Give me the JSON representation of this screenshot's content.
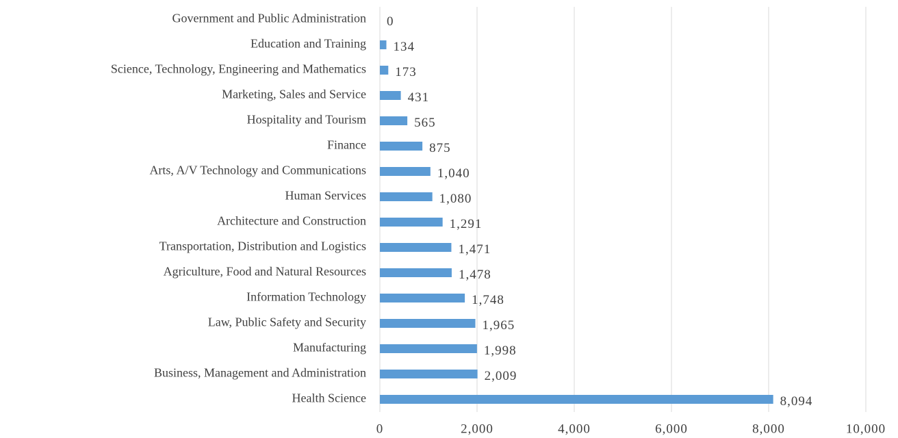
{
  "chart_data": {
    "type": "barh",
    "categories": [
      "Government and Public Administration",
      "Education and Training",
      "Science, Technology, Engineering and Mathematics",
      "Marketing, Sales and Service",
      "Hospitality and Tourism",
      "Finance",
      "Arts, A/V Technology and Communications",
      "Human Services",
      "Architecture and Construction",
      "Transportation, Distribution and Logistics",
      "Agriculture, Food and Natural Resources",
      "Information Technology",
      "Law, Public Safety and Security",
      "Manufacturing",
      "Business, Management and Administration",
      "Health Science"
    ],
    "values": [
      0,
      134,
      173,
      431,
      565,
      875,
      1040,
      1080,
      1291,
      1471,
      1478,
      1748,
      1965,
      1998,
      2009,
      8094
    ],
    "value_labels": [
      "0",
      "134",
      "173",
      "431",
      "565",
      "875",
      "1,040",
      "1,080",
      "1,291",
      "1,471",
      "1,478",
      "1,748",
      "1,965",
      "1,998",
      "2,009",
      "8,094"
    ],
    "color": "#5b9bd5",
    "xlim": [
      0,
      10000
    ],
    "xticks": [
      0,
      {
        "value": 2000,
        "label": "2,000"
      },
      {
        "value": 4000,
        "label": "4,000"
      },
      {
        "value": 6000,
        "label": "6,000"
      },
      {
        "value": 8000,
        "label": "8,000"
      },
      {
        "value": 10000,
        "label": "10,000"
      }
    ],
    "grid": true
  }
}
